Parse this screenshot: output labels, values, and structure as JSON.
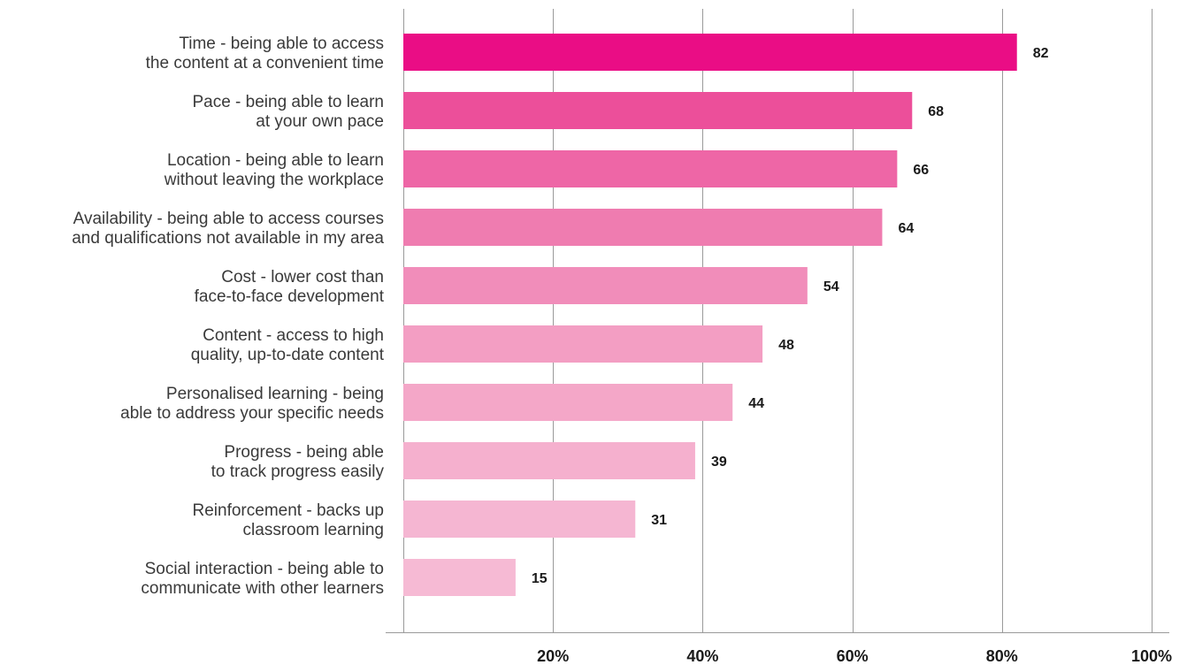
{
  "chart_data": {
    "type": "bar",
    "orientation": "horizontal",
    "categories": [
      [
        "Time - being able to access",
        "the content at a convenient time"
      ],
      [
        "Pace - being able to learn",
        "at your own pace"
      ],
      [
        "Location - being able to learn",
        "without leaving the workplace"
      ],
      [
        "Availability - being able to access courses",
        "and qualifications not available in my area"
      ],
      [
        "Cost - lower cost than",
        "face-to-face development"
      ],
      [
        "Content - access to high",
        "quality, up-to-date content"
      ],
      [
        "Personalised learning - being",
        "able to address your specific needs"
      ],
      [
        "Progress - being able",
        "to track progress easily"
      ],
      [
        "Reinforcement - backs up",
        "classroom learning"
      ],
      [
        "Social interaction - being able to",
        "communicate with other learners"
      ]
    ],
    "values": [
      82,
      68,
      66,
      64,
      54,
      48,
      44,
      39,
      31,
      15
    ],
    "xlim": [
      0,
      100
    ],
    "x_ticks": [
      20,
      40,
      60,
      80,
      100
    ],
    "x_tick_labels": [
      "20%",
      "40%",
      "60%",
      "80%",
      "100%"
    ],
    "grid": true,
    "bar_colors": [
      "#ea0d85",
      "#ec4f9a",
      "#ee66a6",
      "#ef7cb0",
      "#f18dba",
      "#f39ec3",
      "#f4a7c8",
      "#f5b0ce",
      "#f5b6d2",
      "#f6bad4"
    ]
  }
}
